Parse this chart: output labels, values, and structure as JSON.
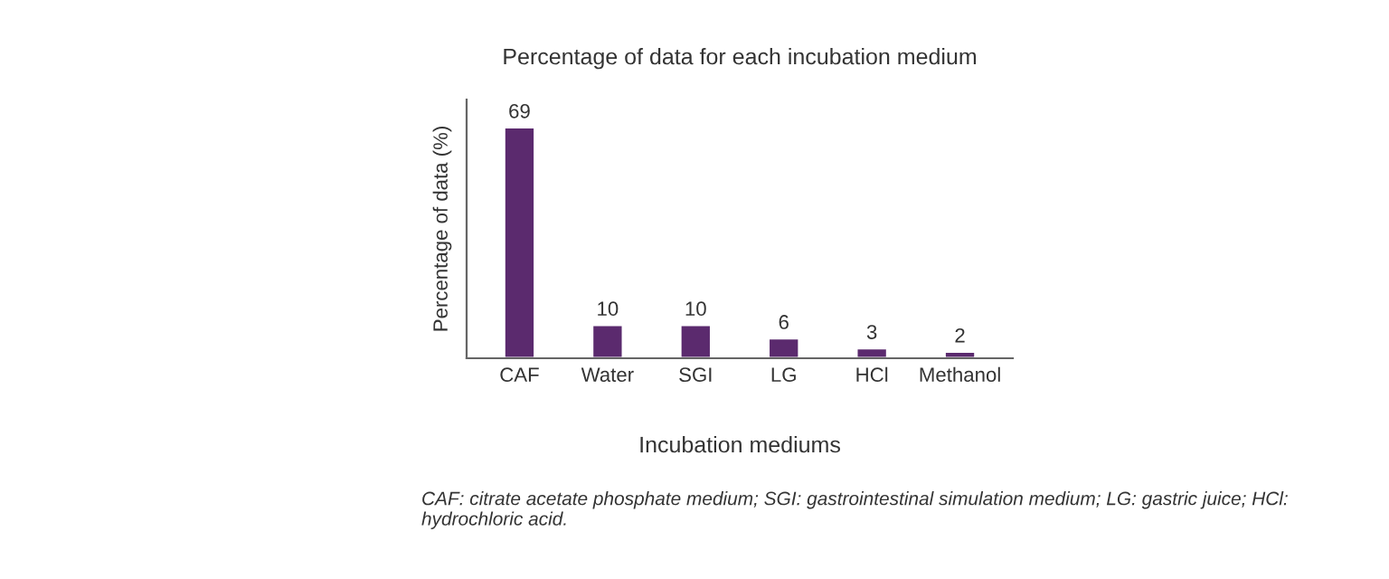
{
  "chart_data": {
    "type": "bar",
    "title": "Percentage of data for each incubation medium",
    "xlabel": "Incubation mediums",
    "ylabel": "Percentage of data (%)",
    "categories": [
      "CAF",
      "Water",
      "SGI",
      "LG",
      "HCl",
      "Methanol"
    ],
    "values": [
      69,
      10,
      10,
      6,
      3,
      2
    ],
    "color": "#5b2a6e",
    "data_labels": true,
    "grid": false,
    "legend": false,
    "tick_labels": "x",
    "annotations": [
      "CAF: citrate acetate phosphate medium; SGI: gastrointestinal simulation medium; LG: gastric juice; HCl: hydrochloric acid."
    ]
  }
}
